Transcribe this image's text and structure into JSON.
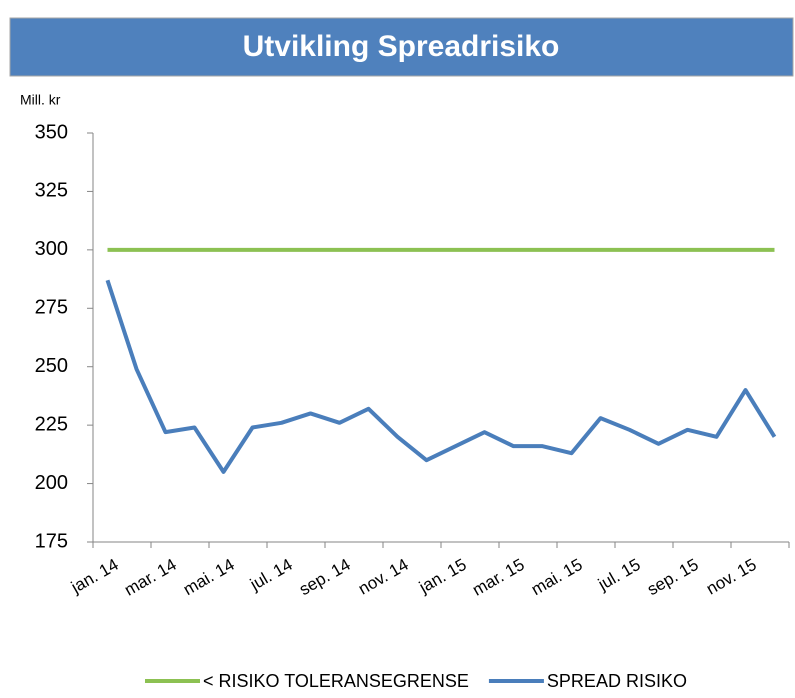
{
  "chart_data": {
    "type": "line",
    "title": "Utvikling Spreadrisiko",
    "y_label": "Mill. kr",
    "categories": [
      "jan. 14",
      null,
      "mar. 14",
      null,
      "mai. 14",
      null,
      "jul. 14",
      null,
      "sep. 14",
      null,
      "nov. 14",
      null,
      "jan. 15",
      null,
      "mar. 15",
      null,
      "mai. 15",
      null,
      "jul. 15",
      null,
      "sep. 15",
      null,
      "nov. 15",
      null
    ],
    "series": [
      {
        "name": "< RISIKO TOLERANSEGRENSE",
        "color": "#8cc152",
        "values": [
          300,
          300,
          300,
          300,
          300,
          300,
          300,
          300,
          300,
          300,
          300,
          300,
          300,
          300,
          300,
          300,
          300,
          300,
          300,
          300,
          300,
          300,
          300,
          300
        ]
      },
      {
        "name": "SPREAD RISIKO",
        "color": "#4a7ebb",
        "values": [
          287,
          249,
          222,
          224,
          205,
          224,
          226,
          230,
          226,
          232,
          220,
          210,
          216,
          222,
          216,
          216,
          213,
          228,
          223,
          217,
          223,
          220,
          240,
          220
        ]
      }
    ],
    "ylim": [
      175,
      350
    ],
    "yticks": [
      175,
      200,
      225,
      250,
      275,
      300,
      325,
      350
    ],
    "grid": false
  }
}
